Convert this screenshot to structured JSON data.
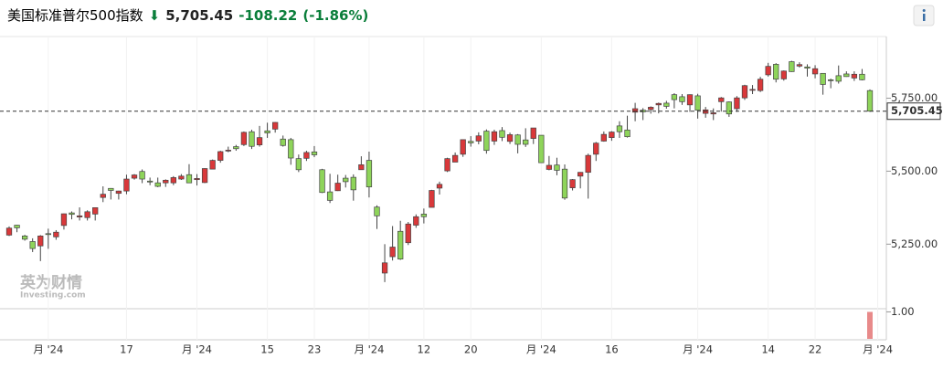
{
  "chart_data": {
    "type": "candlestick",
    "title": "美国标准普尔500指数",
    "price": "5,705.45",
    "change": "-108.22",
    "change_pct": "(-1.86%)",
    "watermark": "英为财情",
    "watermark_sub": "Investing.com",
    "up_color": "#d9383a",
    "down_color": "#8ed45a",
    "categories": [
      "2024-05-24",
      "2024-05-28",
      "2024-05-29",
      "2024-05-30",
      "2024-05-31",
      "2024-06-03",
      "2024-06-04",
      "2024-06-05",
      "2024-06-06",
      "2024-06-07",
      "2024-06-10",
      "2024-06-11",
      "2024-06-12",
      "2024-06-13",
      "2024-06-14",
      "2024-06-17",
      "2024-06-18",
      "2024-06-20",
      "2024-06-21",
      "2024-06-24",
      "2024-06-25",
      "2024-06-26",
      "2024-06-27",
      "2024-06-28",
      "2024-07-01",
      "2024-07-02",
      "2024-07-03",
      "2024-07-05",
      "2024-07-08",
      "2024-07-09",
      "2024-07-10",
      "2024-07-11",
      "2024-07-12",
      "2024-07-15",
      "2024-07-16",
      "2024-07-17",
      "2024-07-18",
      "2024-07-19",
      "2024-07-22",
      "2024-07-23",
      "2024-07-24",
      "2024-07-25",
      "2024-07-26",
      "2024-07-29",
      "2024-07-30",
      "2024-07-31",
      "2024-08-01",
      "2024-08-02",
      "2024-08-05",
      "2024-08-06",
      "2024-08-07",
      "2024-08-08",
      "2024-08-09",
      "2024-08-12",
      "2024-08-13",
      "2024-08-14",
      "2024-08-15",
      "2024-08-16",
      "2024-08-19",
      "2024-08-20",
      "2024-08-21",
      "2024-08-22",
      "2024-08-23",
      "2024-08-26",
      "2024-08-27",
      "2024-08-28",
      "2024-08-29",
      "2024-08-30",
      "2024-09-03",
      "2024-09-04",
      "2024-09-05",
      "2024-09-06",
      "2024-09-09",
      "2024-09-10",
      "2024-09-11",
      "2024-09-12",
      "2024-09-13",
      "2024-09-16",
      "2024-09-17",
      "2024-09-18",
      "2024-09-19",
      "2024-09-20",
      "2024-09-23",
      "2024-09-24",
      "2024-09-25",
      "2024-09-26",
      "2024-09-27",
      "2024-09-30",
      "2024-10-01",
      "2024-10-02",
      "2024-10-03",
      "2024-10-04",
      "2024-10-07",
      "2024-10-08",
      "2024-10-09",
      "2024-10-10",
      "2024-10-11",
      "2024-10-14",
      "2024-10-15",
      "2024-10-16",
      "2024-10-17",
      "2024-10-18",
      "2024-10-21",
      "2024-10-22",
      "2024-10-23",
      "2024-10-24",
      "2024-10-25",
      "2024-10-28",
      "2024-10-29",
      "2024-10-30",
      "2024-10-31"
    ],
    "open": [
      5281,
      5315,
      5278,
      5259,
      5244,
      5286,
      5275,
      5314,
      5357,
      5343,
      5341,
      5353,
      5410,
      5441,
      5424,
      5432,
      5476,
      5499,
      5466,
      5460,
      5460,
      5460,
      5473,
      5488,
      5471,
      5461,
      5507,
      5537,
      5572,
      5584,
      5591,
      5635,
      5590,
      5638,
      5644,
      5610,
      5608,
      5543,
      5544,
      5566,
      5505,
      5429,
      5433,
      5476,
      5479,
      5505,
      5537,
      5377,
      5151,
      5207,
      5294,
      5255,
      5315,
      5353,
      5376,
      5442,
      5501,
      5531,
      5558,
      5602,
      5603,
      5637,
      5603,
      5639,
      5602,
      5624,
      5607,
      5612,
      5623,
      5506,
      5521,
      5507,
      5443,
      5483,
      5496,
      5558,
      5603,
      5615,
      5655,
      5641,
      5702,
      5709,
      5711,
      5727,
      5733,
      5762,
      5755,
      5727,
      5758,
      5698,
      5696,
      5738,
      5737,
      5714,
      5751,
      5778,
      5776,
      5830,
      5866,
      5816,
      5875,
      5860,
      5857,
      5833,
      5835,
      5813,
      5827,
      5833,
      5819,
      5832,
      5776
    ],
    "high": [
      5311,
      5316,
      5282,
      5270,
      5281,
      5303,
      5298,
      5355,
      5362,
      5376,
      5366,
      5376,
      5448,
      5442,
      5433,
      5488,
      5490,
      5506,
      5478,
      5478,
      5472,
      5483,
      5490,
      5524,
      5490,
      5510,
      5540,
      5570,
      5584,
      5590,
      5636,
      5642,
      5655,
      5666,
      5668,
      5622,
      5614,
      5557,
      5570,
      5586,
      5508,
      5491,
      5488,
      5487,
      5489,
      5551,
      5567,
      5383,
      5250,
      5312,
      5330,
      5326,
      5352,
      5372,
      5436,
      5464,
      5546,
      5564,
      5609,
      5620,
      5633,
      5643,
      5642,
      5651,
      5632,
      5627,
      5647,
      5648,
      5623,
      5552,
      5546,
      5523,
      5473,
      5497,
      5560,
      5600,
      5636,
      5637,
      5671,
      5690,
      5734,
      5716,
      5722,
      5735,
      5741,
      5767,
      5764,
      5763,
      5765,
      5720,
      5715,
      5754,
      5739,
      5757,
      5796,
      5795,
      5823,
      5871,
      5870,
      5845,
      5878,
      5873,
      5866,
      5863,
      5835,
      5817,
      5862,
      5842,
      5842,
      5850,
      5780
    ],
    "low": [
      5278,
      5291,
      5262,
      5223,
      5192,
      5234,
      5265,
      5300,
      5335,
      5331,
      5331,
      5331,
      5394,
      5403,
      5403,
      5421,
      5471,
      5459,
      5452,
      5445,
      5446,
      5452,
      5470,
      5460,
      5451,
      5459,
      5506,
      5529,
      5565,
      5570,
      5586,
      5576,
      5584,
      5614,
      5632,
      5584,
      5522,
      5497,
      5535,
      5548,
      5425,
      5391,
      5432,
      5444,
      5399,
      5505,
      5410,
      5302,
      5120,
      5194,
      5196,
      5247,
      5306,
      5321,
      5376,
      5420,
      5497,
      5531,
      5549,
      5584,
      5592,
      5560,
      5590,
      5603,
      5593,
      5561,
      5583,
      5593,
      5528,
      5503,
      5486,
      5402,
      5434,
      5441,
      5406,
      5535,
      5601,
      5604,
      5614,
      5615,
      5671,
      5675,
      5697,
      5698,
      5714,
      5715,
      5727,
      5703,
      5680,
      5683,
      5675,
      5704,
      5686,
      5703,
      5744,
      5764,
      5771,
      5824,
      5804,
      5810,
      5840,
      5855,
      5824,
      5818,
      5762,
      5784,
      5800,
      5823,
      5809,
      5811,
      5703
    ],
    "close": [
      5305,
      5306,
      5267,
      5235,
      5278,
      5283,
      5291,
      5354,
      5352,
      5347,
      5361,
      5375,
      5421,
      5434,
      5432,
      5473,
      5487,
      5473,
      5465,
      5448,
      5469,
      5478,
      5483,
      5460,
      5475,
      5509,
      5537,
      5567,
      5572,
      5577,
      5633,
      5585,
      5615,
      5631,
      5667,
      5588,
      5545,
      5505,
      5564,
      5556,
      5427,
      5400,
      5459,
      5464,
      5436,
      5522,
      5446,
      5347,
      5186,
      5240,
      5199,
      5319,
      5344,
      5344,
      5434,
      5455,
      5543,
      5554,
      5608,
      5597,
      5621,
      5571,
      5635,
      5616,
      5625,
      5592,
      5592,
      5648,
      5529,
      5520,
      5503,
      5408,
      5471,
      5496,
      5554,
      5596,
      5626,
      5634,
      5635,
      5618,
      5714,
      5703,
      5719,
      5732,
      5722,
      5745,
      5738,
      5762,
      5709,
      5710,
      5700,
      5751,
      5696,
      5751,
      5793,
      5780,
      5815,
      5859,
      5815,
      5843,
      5841,
      5865,
      5853,
      5851,
      5797,
      5810,
      5808,
      5824,
      5832,
      5813,
      5705.45
    ],
    "ylim": [
      5032,
      5958
    ],
    "yticks": [
      {
        "value": 5250,
        "label": "5,250.00"
      },
      {
        "value": 5500,
        "label": "5,500.00"
      },
      {
        "value": 5750,
        "label": "5,750.00"
      }
    ],
    "last_price": {
      "value": 5705.45,
      "label": "5,705.45"
    },
    "xticks": [
      {
        "value": "2024-06-03",
        "label": "月 '24"
      },
      {
        "value": "2024-06-17",
        "label": "17"
      },
      {
        "value": "2024-07-01",
        "label": "月 '24"
      },
      {
        "value": "2024-07-15",
        "label": "15"
      },
      {
        "value": "2024-07-23",
        "label": "23"
      },
      {
        "value": "2024-08-01",
        "label": "月 '24"
      },
      {
        "value": "2024-08-12",
        "label": "12"
      },
      {
        "value": "2024-08-20",
        "label": "20"
      },
      {
        "value": "2024-09-03",
        "label": "月 '24"
      },
      {
        "value": "2024-09-16",
        "label": "16"
      },
      {
        "value": "2024-10-01",
        "label": "月 '24"
      },
      {
        "value": "2024-10-14",
        "label": "14"
      },
      {
        "value": "2024-10-22",
        "label": "22"
      },
      {
        "value": "2024-11-01",
        "label": "月 '24"
      }
    ],
    "volume": {
      "values": [
        1
      ],
      "color": "#e88a8a",
      "ylim": [
        0,
        1.05
      ],
      "yticks": [
        {
          "value": 1,
          "label": "1.00"
        }
      ]
    }
  }
}
